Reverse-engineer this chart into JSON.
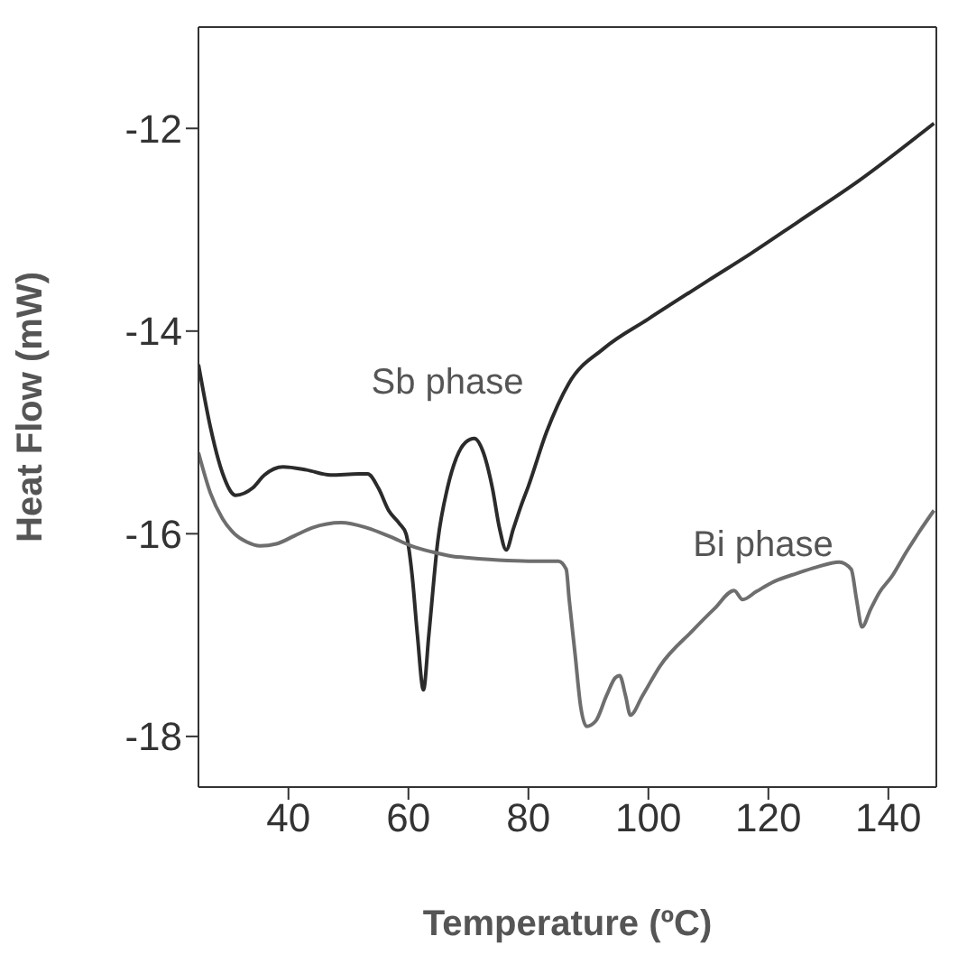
{
  "chart_data": {
    "type": "line",
    "xlabel": "Temperature (ºC)",
    "ylabel": "Heat Flow (mW)",
    "xlim": [
      25,
      148
    ],
    "ylim": [
      -18.5,
      -11
    ],
    "xticks": [
      40,
      60,
      80,
      100,
      120,
      140
    ],
    "yticks": [
      -12,
      -14,
      -16,
      -18
    ],
    "grid": false,
    "legend": false,
    "marker": "none",
    "line_style": "solid",
    "annotations": [
      "Sb phase",
      "Bi phase"
    ],
    "series": [
      {
        "color": "#2b2b2b",
        "x": [
          25,
          27,
          29,
          31.2,
          34,
          36,
          39.1,
          43,
          47,
          51.7,
          53.2,
          55,
          56.7,
          58.5,
          59.6,
          60.6,
          61.5,
          62.5,
          63.4,
          64.9,
          66.5,
          68,
          69.5,
          71,
          72.5,
          74,
          75.2,
          76.3,
          77.5,
          78.8,
          80,
          83,
          86.7,
          92.6,
          100,
          110,
          117.2,
          125,
          135,
          147.6
        ],
        "values": [
          -14.33,
          -14.95,
          -15.4,
          -15.62,
          -15.55,
          -15.42,
          -15.34,
          -15.37,
          -15.42,
          -15.41,
          -15.41,
          -15.55,
          -15.77,
          -15.9,
          -16.0,
          -16.4,
          -17.0,
          -17.54,
          -17.0,
          -16.07,
          -15.55,
          -15.25,
          -15.1,
          -15.06,
          -15.2,
          -15.55,
          -15.95,
          -16.16,
          -15.95,
          -15.72,
          -15.53,
          -15.0,
          -14.52,
          -14.17,
          -13.88,
          -13.5,
          -13.23,
          -12.92,
          -12.52,
          -11.95
        ]
      },
      {
        "color": "#6e6e6e",
        "x": [
          25,
          27,
          29,
          31,
          33,
          35.3,
          38,
          41,
          44,
          48.8,
          53,
          57,
          60.5,
          64,
          67,
          70.4,
          75,
          80,
          85,
          86.3,
          86.8,
          87.8,
          88.7,
          89.7,
          91.2,
          93,
          94.5,
          95.2,
          96.2,
          97,
          99,
          102,
          107.3,
          111,
          114.3,
          115.7,
          118,
          121,
          124.8,
          128,
          131.8,
          133.8,
          134.7,
          135.6,
          137,
          138.5,
          140.6,
          143,
          145.5,
          147.6
        ],
        "values": [
          -15.2,
          -15.6,
          -15.85,
          -16.0,
          -16.08,
          -16.12,
          -16.1,
          -16.02,
          -15.94,
          -15.89,
          -15.94,
          -16.03,
          -16.12,
          -16.18,
          -16.22,
          -16.24,
          -16.26,
          -16.27,
          -16.27,
          -16.35,
          -16.65,
          -17.2,
          -17.7,
          -17.9,
          -17.85,
          -17.6,
          -17.42,
          -17.4,
          -17.6,
          -17.79,
          -17.6,
          -17.3,
          -16.96,
          -16.74,
          -16.56,
          -16.65,
          -16.57,
          -16.47,
          -16.39,
          -16.33,
          -16.28,
          -16.35,
          -16.65,
          -16.92,
          -16.75,
          -16.58,
          -16.42,
          -16.18,
          -15.95,
          -15.77
        ]
      }
    ]
  }
}
